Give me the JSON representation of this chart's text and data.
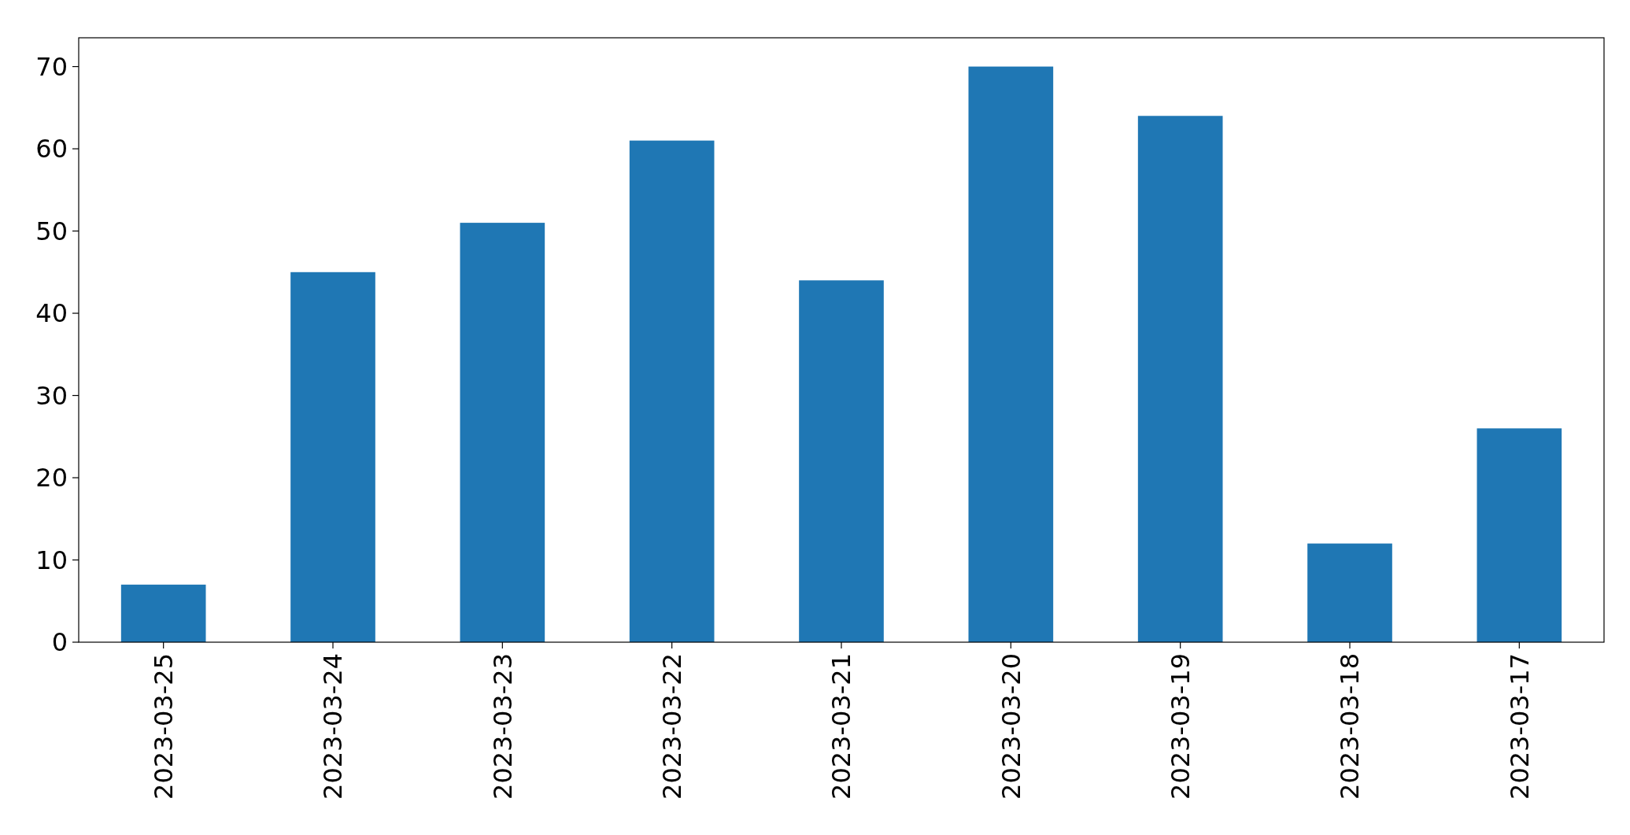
{
  "chart_data": {
    "type": "bar",
    "categories": [
      "2023-03-25",
      "2023-03-24",
      "2023-03-23",
      "2023-03-22",
      "2023-03-21",
      "2023-03-20",
      "2023-03-19",
      "2023-03-18",
      "2023-03-17"
    ],
    "values": [
      7,
      45,
      51,
      61,
      44,
      70,
      64,
      12,
      26
    ],
    "color": "#1f77b4",
    "ylim": [
      0,
      73.5
    ],
    "yticks": [
      0,
      10,
      20,
      30,
      40,
      50,
      60,
      70
    ]
  }
}
